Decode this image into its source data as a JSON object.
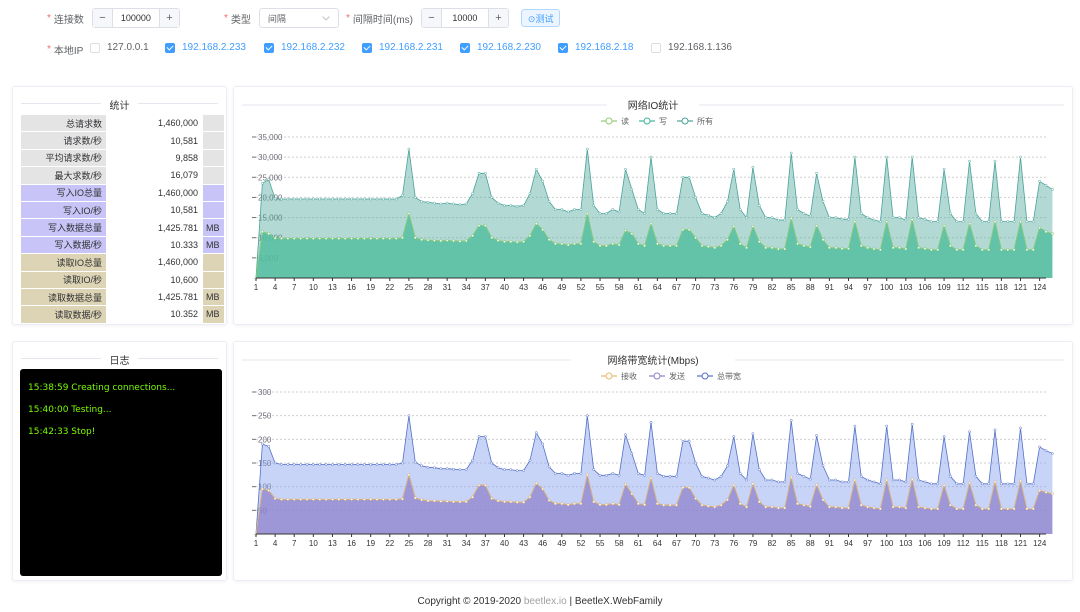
{
  "form": {
    "connections": {
      "label": "连接数",
      "value": "100000"
    },
    "type": {
      "label": "类型",
      "value": "间隔"
    },
    "interval": {
      "label": "间隔时间(ms)",
      "value": "10000"
    },
    "test_button": "⊙测试",
    "local_ip": {
      "label": "本地IP",
      "items": [
        {
          "ip": "127.0.0.1",
          "checked": false
        },
        {
          "ip": "192.168.2.233",
          "checked": true
        },
        {
          "ip": "192.168.2.232",
          "checked": true
        },
        {
          "ip": "192.168.2.231",
          "checked": true
        },
        {
          "ip": "192.168.2.230",
          "checked": true
        },
        {
          "ip": "192.168.2.18",
          "checked": true
        },
        {
          "ip": "192.168.1.136",
          "checked": false
        }
      ]
    },
    "stepper_minus": "−",
    "stepper_plus": "+"
  },
  "stats": {
    "title": "统计",
    "rows": [
      {
        "label": "总请求数",
        "value": "1,460,000",
        "unit": "",
        "color": "#e4e4e4"
      },
      {
        "label": "请求数/秒",
        "value": "10,581",
        "unit": "",
        "color": "#e4e4e4"
      },
      {
        "label": "平均请求数/秒",
        "value": "9,858",
        "unit": "",
        "color": "#e4e4e4"
      },
      {
        "label": "最大求数/秒",
        "value": "16,079",
        "unit": "",
        "color": "#e4e4e4"
      },
      {
        "label": "写入IO总量",
        "value": "1,460,000",
        "unit": "",
        "color": "#c9c4f7"
      },
      {
        "label": "写入IO/秒",
        "value": "10,581",
        "unit": "",
        "color": "#c9c4f7"
      },
      {
        "label": "写入数据总量",
        "value": "1,425.781",
        "unit": "MB",
        "color": "#c9c4f7"
      },
      {
        "label": "写入数据/秒",
        "value": "10.333",
        "unit": "MB",
        "color": "#c9c4f7"
      },
      {
        "label": "读取IO总量",
        "value": "1,460,000",
        "unit": "",
        "color": "#dcd4b4"
      },
      {
        "label": "读取IO/秒",
        "value": "10,600",
        "unit": "",
        "color": "#dcd4b4"
      },
      {
        "label": "读取数据总量",
        "value": "1,425.781",
        "unit": "MB",
        "color": "#dcd4b4"
      },
      {
        "label": "读取数据/秒",
        "value": "10.352",
        "unit": "MB",
        "color": "#dcd4b4"
      }
    ]
  },
  "log": {
    "title": "日志",
    "lines": [
      "15:38:59 Creating connections...",
      "15:40:00 Testing...",
      "15:42:33 Stop!"
    ]
  },
  "chart_data": [
    {
      "type": "area",
      "title": "网络IO统计",
      "xlabel": "",
      "ylabel": "",
      "ylim": [
        0,
        35000
      ],
      "yticks": [
        5000,
        10000,
        15000,
        20000,
        25000,
        30000,
        35000
      ],
      "ytick_labels": [
        "5,000",
        "10,000",
        "15,000",
        "20,000",
        "25,000",
        "30,000",
        "35,000"
      ],
      "xtick_labels": [
        "1",
        "4",
        "7",
        "10",
        "13",
        "16",
        "19",
        "22",
        "25",
        "28",
        "31",
        "34",
        "37",
        "40",
        "43",
        "46",
        "49",
        "52",
        "55",
        "58",
        "61",
        "64",
        "67",
        "70",
        "73",
        "76",
        "79",
        "82",
        "85",
        "88",
        "91",
        "94",
        "97",
        "100",
        "103",
        "106",
        "109",
        "112",
        "115",
        "118",
        "121",
        "124"
      ],
      "x_range": [
        1,
        125
      ],
      "grid": true,
      "legend_position": "top",
      "series": [
        {
          "name": "读",
          "color": "#91cc75",
          "values": [
            0,
            11500,
            11000,
            9900,
            9800,
            9800,
            9800,
            9800,
            9800,
            9800,
            9800,
            9800,
            9800,
            9800,
            9800,
            9800,
            9800,
            9800,
            9800,
            9800,
            9800,
            9800,
            9800,
            10000,
            16000,
            10000,
            9500,
            9400,
            9300,
            9200,
            9300,
            9200,
            9100,
            9200,
            10500,
            13000,
            13000,
            10000,
            9300,
            9000,
            9000,
            8900,
            9000,
            10500,
            13500,
            12000,
            9500,
            8500,
            8500,
            8200,
            8500,
            8500,
            16000,
            9000,
            8000,
            8000,
            8500,
            8200,
            11800,
            11000,
            8500,
            8000,
            13500,
            8500,
            8000,
            8000,
            8000,
            12000,
            12000,
            10000,
            8000,
            7800,
            7500,
            8000,
            9500,
            12800,
            8500,
            7500,
            12800,
            9000,
            7500,
            7500,
            7200,
            7200,
            14800,
            8500,
            8000,
            7700,
            13000,
            9500,
            7500,
            7500,
            7300,
            7300,
            14000,
            8000,
            7500,
            7200,
            7000,
            14000,
            7500,
            7500,
            7200,
            14500,
            7500,
            7300,
            7000,
            7000,
            13000,
            8000,
            7000,
            7000,
            13500,
            8000,
            7000,
            7000,
            14000,
            7000,
            7000,
            7000,
            14000,
            7000,
            7000,
            12500,
            11500,
            11000
          ]
        },
        {
          "name": "写",
          "color": "#73c0de",
          "values": [
            0,
            11500,
            11000,
            9900,
            9800,
            9800,
            9800,
            9800,
            9800,
            9800,
            9800,
            9800,
            9800,
            9800,
            9800,
            9800,
            9800,
            9800,
            9800,
            9800,
            9800,
            9800,
            9800,
            10000,
            16000,
            10000,
            9500,
            9400,
            9300,
            9200,
            9300,
            9200,
            9100,
            9200,
            10500,
            13000,
            13000,
            10000,
            9300,
            9000,
            9000,
            8900,
            9000,
            10500,
            13500,
            12000,
            9500,
            8500,
            8500,
            8200,
            8500,
            8500,
            16000,
            9000,
            8000,
            8000,
            8500,
            8200,
            11800,
            11000,
            8500,
            8000,
            13500,
            8500,
            8000,
            8000,
            8000,
            12000,
            12000,
            10000,
            8000,
            7800,
            7500,
            8000,
            9500,
            12800,
            8500,
            7500,
            12800,
            9000,
            7500,
            7500,
            7200,
            7200,
            14800,
            8500,
            8000,
            7700,
            13000,
            9500,
            7500,
            7500,
            7300,
            7300,
            14000,
            8000,
            7500,
            7200,
            7000,
            14000,
            7500,
            7500,
            7200,
            14500,
            7500,
            7300,
            7000,
            7000,
            13000,
            8000,
            7000,
            7000,
            13500,
            8000,
            7000,
            7000,
            14000,
            7000,
            7000,
            7000,
            14000,
            7000,
            7000,
            12500,
            11500,
            11000
          ]
        },
        {
          "name": "所有",
          "color": "#3ba272",
          "values": [
            0,
            23500,
            24500,
            19700,
            19600,
            19600,
            19600,
            19600,
            19600,
            19600,
            19600,
            19600,
            19600,
            19600,
            19600,
            19600,
            19600,
            19600,
            19600,
            19600,
            19600,
            19600,
            19600,
            20500,
            32000,
            20000,
            19000,
            18800,
            18600,
            18400,
            18600,
            18400,
            18200,
            18400,
            21000,
            26000,
            26000,
            20000,
            18600,
            18000,
            18000,
            17800,
            18000,
            21000,
            27000,
            24000,
            19000,
            17000,
            17000,
            16400,
            17000,
            17000,
            32000,
            18000,
            16000,
            16000,
            17000,
            16400,
            27000,
            22000,
            17000,
            16000,
            30000,
            17000,
            16000,
            16000,
            16000,
            25000,
            25000,
            20000,
            16000,
            15600,
            15000,
            16000,
            19000,
            27000,
            17000,
            15000,
            27500,
            18000,
            15000,
            15000,
            14400,
            14400,
            31000,
            17000,
            16000,
            15400,
            26000,
            19000,
            15000,
            15000,
            14600,
            14600,
            30000,
            16000,
            15000,
            14400,
            14000,
            30000,
            15000,
            15000,
            14400,
            30000,
            15000,
            14600,
            14000,
            14000,
            27000,
            16000,
            14000,
            14000,
            29000,
            16000,
            14000,
            14000,
            29000,
            14000,
            14000,
            14000,
            30000,
            14000,
            14000,
            24000,
            23000,
            22000
          ]
        }
      ]
    },
    {
      "type": "area",
      "title": "网络带宽统计(Mbps)",
      "xlabel": "",
      "ylabel": "",
      "ylim": [
        0,
        300
      ],
      "yticks": [
        50,
        100,
        150,
        200,
        250,
        300
      ],
      "ytick_labels": [
        "50",
        "100",
        "150",
        "200",
        "250",
        "300"
      ],
      "xtick_labels": [
        "1",
        "4",
        "7",
        "10",
        "13",
        "16",
        "19",
        "22",
        "25",
        "28",
        "31",
        "34",
        "37",
        "40",
        "43",
        "46",
        "49",
        "52",
        "55",
        "58",
        "61",
        "64",
        "67",
        "70",
        "73",
        "76",
        "79",
        "82",
        "85",
        "88",
        "91",
        "94",
        "97",
        "100",
        "103",
        "106",
        "109",
        "112",
        "115",
        "118",
        "121",
        "124"
      ],
      "x_range": [
        1,
        125
      ],
      "grid": true,
      "legend_position": "top",
      "series": [
        {
          "name": "接收",
          "color": "#e6b96b",
          "values": [
            0,
            95,
            92,
            75,
            73,
            73,
            73,
            73,
            73,
            73,
            73,
            73,
            73,
            73,
            73,
            73,
            73,
            73,
            73,
            73,
            73,
            73,
            73,
            74,
            125,
            76,
            72,
            70,
            70,
            69,
            69,
            68,
            68,
            68,
            78,
            103,
            103,
            75,
            70,
            68,
            68,
            67,
            67,
            78,
            107,
            95,
            71,
            64,
            64,
            62,
            64,
            64,
            125,
            68,
            62,
            62,
            64,
            62,
            105,
            85,
            64,
            62,
            118,
            64,
            61,
            61,
            61,
            98,
            98,
            75,
            61,
            59,
            57,
            61,
            72,
            103,
            64,
            57,
            106,
            68,
            57,
            57,
            55,
            55,
            120,
            64,
            61,
            58,
            104,
            72,
            57,
            57,
            55,
            55,
            114,
            61,
            57,
            55,
            53,
            114,
            57,
            57,
            55,
            116,
            57,
            55,
            53,
            53,
            103,
            61,
            53,
            53,
            108,
            61,
            53,
            53,
            110,
            53,
            53,
            53,
            112,
            53,
            53,
            92,
            88,
            85
          ]
        },
        {
          "name": "发送",
          "color": "#8c7ec9",
          "values": [
            0,
            95,
            92,
            75,
            73,
            73,
            73,
            73,
            73,
            73,
            73,
            73,
            73,
            73,
            73,
            73,
            73,
            73,
            73,
            73,
            73,
            73,
            73,
            74,
            125,
            76,
            72,
            70,
            70,
            69,
            69,
            68,
            68,
            68,
            78,
            103,
            103,
            75,
            70,
            68,
            68,
            67,
            67,
            78,
            107,
            95,
            71,
            64,
            64,
            62,
            64,
            64,
            125,
            68,
            62,
            62,
            64,
            62,
            105,
            85,
            64,
            62,
            118,
            64,
            61,
            61,
            61,
            98,
            98,
            75,
            61,
            59,
            57,
            61,
            72,
            103,
            64,
            57,
            106,
            68,
            57,
            57,
            55,
            55,
            120,
            64,
            61,
            58,
            104,
            72,
            57,
            57,
            55,
            55,
            114,
            61,
            57,
            55,
            53,
            114,
            57,
            57,
            55,
            116,
            57,
            55,
            53,
            53,
            103,
            61,
            53,
            53,
            108,
            61,
            53,
            53,
            110,
            53,
            53,
            53,
            112,
            53,
            53,
            92,
            88,
            85
          ]
        },
        {
          "name": "总带宽",
          "color": "#5470c6",
          "values": [
            0,
            190,
            185,
            150,
            147,
            147,
            147,
            147,
            147,
            147,
            147,
            147,
            147,
            147,
            147,
            147,
            147,
            147,
            147,
            147,
            147,
            147,
            147,
            150,
            250,
            152,
            144,
            141,
            140,
            138,
            138,
            137,
            136,
            136,
            156,
            206,
            206,
            150,
            140,
            136,
            136,
            134,
            134,
            156,
            214,
            190,
            142,
            128,
            128,
            124,
            128,
            128,
            250,
            136,
            124,
            124,
            128,
            124,
            210,
            170,
            128,
            124,
            236,
            128,
            122,
            122,
            122,
            196,
            196,
            150,
            122,
            118,
            114,
            122,
            144,
            206,
            128,
            114,
            212,
            136,
            114,
            114,
            110,
            110,
            240,
            128,
            122,
            116,
            208,
            144,
            114,
            114,
            110,
            110,
            228,
            122,
            114,
            110,
            106,
            228,
            114,
            114,
            110,
            232,
            114,
            110,
            106,
            106,
            206,
            122,
            106,
            106,
            216,
            122,
            106,
            106,
            220,
            106,
            106,
            106,
            224,
            106,
            106,
            184,
            176,
            170
          ]
        }
      ]
    }
  ],
  "footer": {
    "prefix": "Copyright © 2019-2020 ",
    "link": "beetlex.io",
    "suffix": " | BeetleX.WebFamily"
  }
}
